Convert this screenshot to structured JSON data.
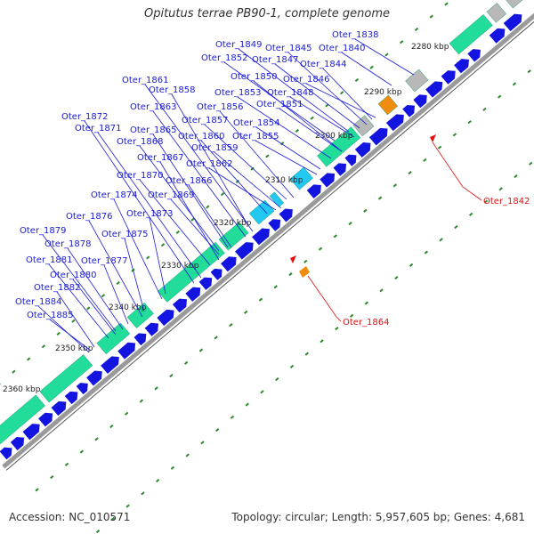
{
  "title": "Opitutus terrae PB90-1, complete genome",
  "footer": {
    "accession": "Accession: NC_010571",
    "topology": "Topology: circular; Length: 5,957,605 bp; Genes: 4,681"
  },
  "colors": {
    "gene_label": "#1a1ad6",
    "highlight_label": "#e01010",
    "backbone": "#9a9a9a",
    "cds_forward": "#1414e0",
    "rna_green": "#22dd9a",
    "rna_cyan": "#22c8f0",
    "gray_feature": "#b8b8b8",
    "orange_feature": "#f08c10",
    "dotted_track": "#2a8a2a"
  },
  "ticks": [
    "2280 kbp",
    "2290 kbp",
    "2300 kbp",
    "2310 kbp",
    "2320 kbp",
    "2330 kbp",
    "2340 kbp",
    "2350 kbp",
    "2360 kbp"
  ],
  "gene_labels": [
    "Oter_1838",
    "Oter_1840",
    "Oter_1844",
    "Oter_1845",
    "Oter_1846",
    "Oter_1847",
    "Oter_1848",
    "Oter_1849",
    "Oter_1850",
    "Oter_1851",
    "Oter_1852",
    "Oter_1853",
    "Oter_1854",
    "Oter_1855",
    "Oter_1856",
    "Oter_1857",
    "Oter_1858",
    "Oter_1859",
    "Oter_1860",
    "Oter_1861",
    "Oter_1862",
    "Oter_1863",
    "Oter_1865",
    "Oter_1866",
    "Oter_1867",
    "Oter_1868",
    "Oter_1869",
    "Oter_1870",
    "Oter_1871",
    "Oter_1872",
    "Oter_1873",
    "Oter_1874",
    "Oter_1875",
    "Oter_1876",
    "Oter_1877",
    "Oter_1878",
    "Oter_1879",
    "Oter_1880",
    "Oter_1881",
    "Oter_1882",
    "Oter_1884",
    "Oter_1885"
  ],
  "highlight_labels": [
    "Oter_1842",
    "Oter_1864"
  ]
}
